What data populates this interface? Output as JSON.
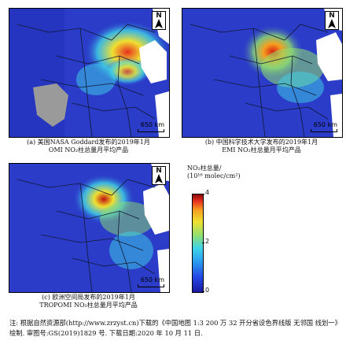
{
  "panels": {
    "a": {
      "caption_line1": "(a) 美国NASA Goddard发布的2019年1月",
      "caption_line2": "OMI NO₂柱总量月平均产品",
      "north_label": "N",
      "scale_label": "650 km"
    },
    "b": {
      "caption_line1": "(b) 中国科学技术大学发布的2019年1月",
      "caption_line2": "EMI NO₂柱总量月平均产品",
      "north_label": "N",
      "scale_label": "650 km"
    },
    "c": {
      "caption_line1": "(c) 欧洲空间局发布的2019年1月",
      "caption_line2": "TROPOMI NO₂柱总量月平均产品",
      "north_label": "N",
      "scale_label": "650 km"
    }
  },
  "legend": {
    "title_line1": "NO₂柱总量/",
    "title_line2": "(10¹⁶ molec/cm²)",
    "ticks": [
      "4",
      "2",
      "0"
    ],
    "colors": [
      "#1a1aa0",
      "#2aa0f0",
      "#8fe070",
      "#f0e030",
      "#e83020",
      "#8c0a0a"
    ]
  },
  "note": "注: 根据自然资源部(http://www.zrzyst.cn)下载的《中国地图 1:3 200 万 32 开分省设色界线版 无邻国 线划一》绘制. 审图号:GS(2019)1829 号. 下载日期:2020 年 10 月 11 日."
}
